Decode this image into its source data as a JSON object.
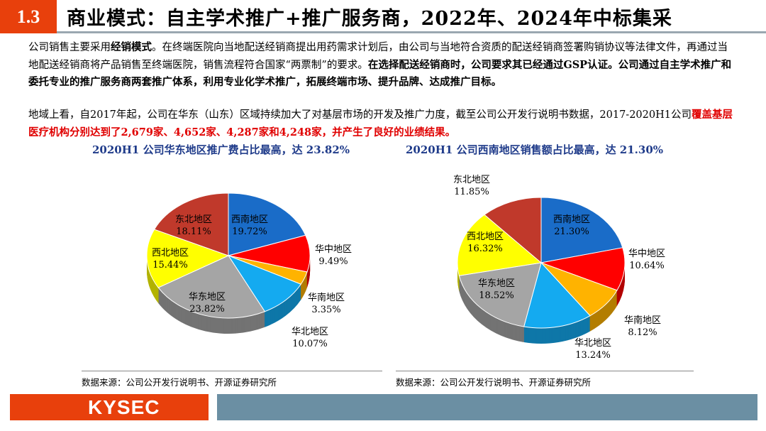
{
  "header": {
    "section": "1.3",
    "title": "商业模式：自主学术推广+推广服务商，2022年、2024年中标集采"
  },
  "para1": {
    "t1": "公司销售主要采用",
    "b1": "经销模式",
    "t2": "。在终端医院向当地配送经销商提出用药需求计划后，由公司与当地符合资质的配送经销商签署购销协议等法律文件，再通过当地配送经销商将产品销售至终端医院，销售流程符合国家“两票制”的要求。",
    "b2": "在选择配送经销商时，公司要求其已经通过GSP认证。公司通过自主学术推广和委托专业的推广服务商两套推广体系，利用专业化学术推广，拓展终端市场、提升品牌、达成推广目标。"
  },
  "para2": {
    "t1": "地域上看，自2017年起，公司在华东（山东）区域持续加大了对基层市场的开发及推广力度，截至公司公开发行说明书数据，2017-2020H1公司",
    "red": "覆盖基层医疗机构分别达到了2,679家、4,652家、4,287家和4,248家，并产生了良好的业绩结果。"
  },
  "sources": {
    "left": "数据来源：公司公开发行说明书、开源证券研究所",
    "right": "数据来源：公司公开发行说明书、开源证券研究所"
  },
  "footer": {
    "logo": "KYSEC"
  },
  "colors": {
    "西南地区": "#1a6cc8",
    "华中地区": "#ff0000",
    "华南地区": "#ffb300",
    "华北地区": "#14aaf0",
    "华东地区": "#a5a5a5",
    "西北地区": "#ffff00",
    "东北地区": "#c0392b"
  },
  "chart_data": [
    {
      "type": "pie",
      "title": "2020H1 公司华东地区推广费占比最高，达 23.82%",
      "categories": [
        "西南地区",
        "华中地区",
        "华南地区",
        "华北地区",
        "华东地区",
        "西北地区",
        "东北地区"
      ],
      "values": [
        19.72,
        9.49,
        3.35,
        10.07,
        23.82,
        15.44,
        18.11
      ],
      "labels": [
        "19.72%",
        "9.49%",
        "3.35%",
        "10.07%",
        "23.82%",
        "15.44%",
        "18.11%"
      ]
    },
    {
      "type": "pie",
      "title": "2020H1 公司西南地区销售额占比最高，达 21.30%",
      "categories": [
        "西南地区",
        "华中地区",
        "华南地区",
        "华北地区",
        "华东地区",
        "西北地区",
        "东北地区"
      ],
      "values": [
        21.3,
        10.64,
        8.12,
        13.24,
        18.52,
        16.32,
        11.85
      ],
      "labels": [
        "21.30%",
        "10.64%",
        "8.12%",
        "13.24%",
        "18.52%",
        "16.32%",
        "11.85%"
      ]
    }
  ]
}
